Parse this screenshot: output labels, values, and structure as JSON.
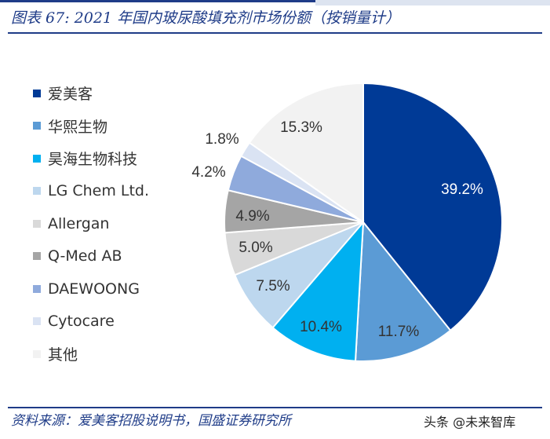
{
  "figure": {
    "title": "图表 67: 2021 年国内玻尿酸填充剂市场份额（按销量计）",
    "source": "资料来源：爱美客招股说明书，国盛证券研究所",
    "watermark": "头条 @未来智库"
  },
  "chart_data": {
    "type": "pie",
    "start_angle_deg": 0,
    "direction": "clockwise",
    "legend_position": "left",
    "categories": [
      "爱美客",
      "华熙生物",
      "昊海生物科技",
      "LG Chem Ltd.",
      "Allergan",
      "Q-Med AB",
      "DAEWOONG",
      "Cytocare",
      "其他"
    ],
    "values": [
      39.2,
      11.7,
      10.4,
      7.5,
      5.0,
      4.9,
      4.2,
      1.8,
      15.3
    ],
    "data_labels": [
      "39.2%",
      "11.7%",
      "10.4%",
      "7.5%",
      "5.0%",
      "4.9%",
      "4.2%",
      "1.8%",
      "15.3%"
    ],
    "unit": "%",
    "colors": [
      "#003a96",
      "#5b9bd5",
      "#00b0f0",
      "#bdd7ee",
      "#d9d9d9",
      "#a5a5a5",
      "#8faadc",
      "#dae3f3",
      "#f2f2f2"
    ],
    "label_colors": [
      "#ffffff",
      "#333333",
      "#333333",
      "#333333",
      "#333333",
      "#333333",
      "#333333",
      "#333333",
      "#333333"
    ]
  }
}
